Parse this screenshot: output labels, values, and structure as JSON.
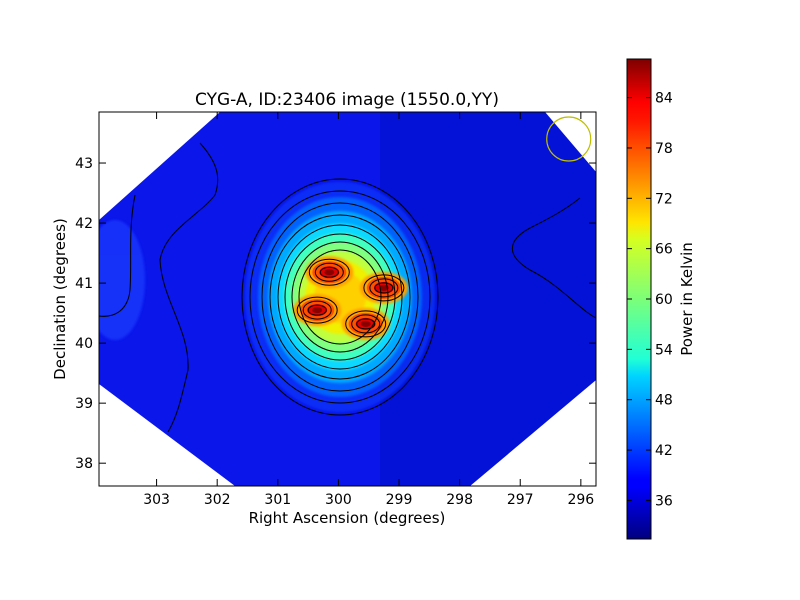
{
  "chart_data": {
    "type": "heatmap",
    "title": "CYG-A, ID:23406 image (1550.0,YY)",
    "xlabel": "Right Ascension (degrees)",
    "ylabel": "Declination (degrees)",
    "colorbar_label": "Power in Kelvin",
    "xlim": [
      303.95,
      295.75
    ],
    "ylim": [
      37.62,
      43.85
    ],
    "x_ticks": [
      303,
      302,
      301,
      300,
      299,
      298,
      297,
      296
    ],
    "y_ticks": [
      38,
      39,
      40,
      41,
      42,
      43
    ],
    "colorbar_range": [
      31.4,
      88.6
    ],
    "colorbar_ticks": [
      36,
      42,
      48,
      54,
      60,
      66,
      72,
      78,
      84
    ],
    "colormap": "jet",
    "peaks": [
      {
        "ra": 300.15,
        "dec": 41.18,
        "value": 86
      },
      {
        "ra": 299.25,
        "dec": 40.92,
        "value": 84
      },
      {
        "ra": 300.35,
        "dec": 40.55,
        "value": 83
      },
      {
        "ra": 299.55,
        "dec": 40.32,
        "value": 85
      }
    ],
    "beam_marker": {
      "color": "#bfbf00",
      "ra": 296.2,
      "dec": 43.4
    },
    "contours": "black"
  }
}
